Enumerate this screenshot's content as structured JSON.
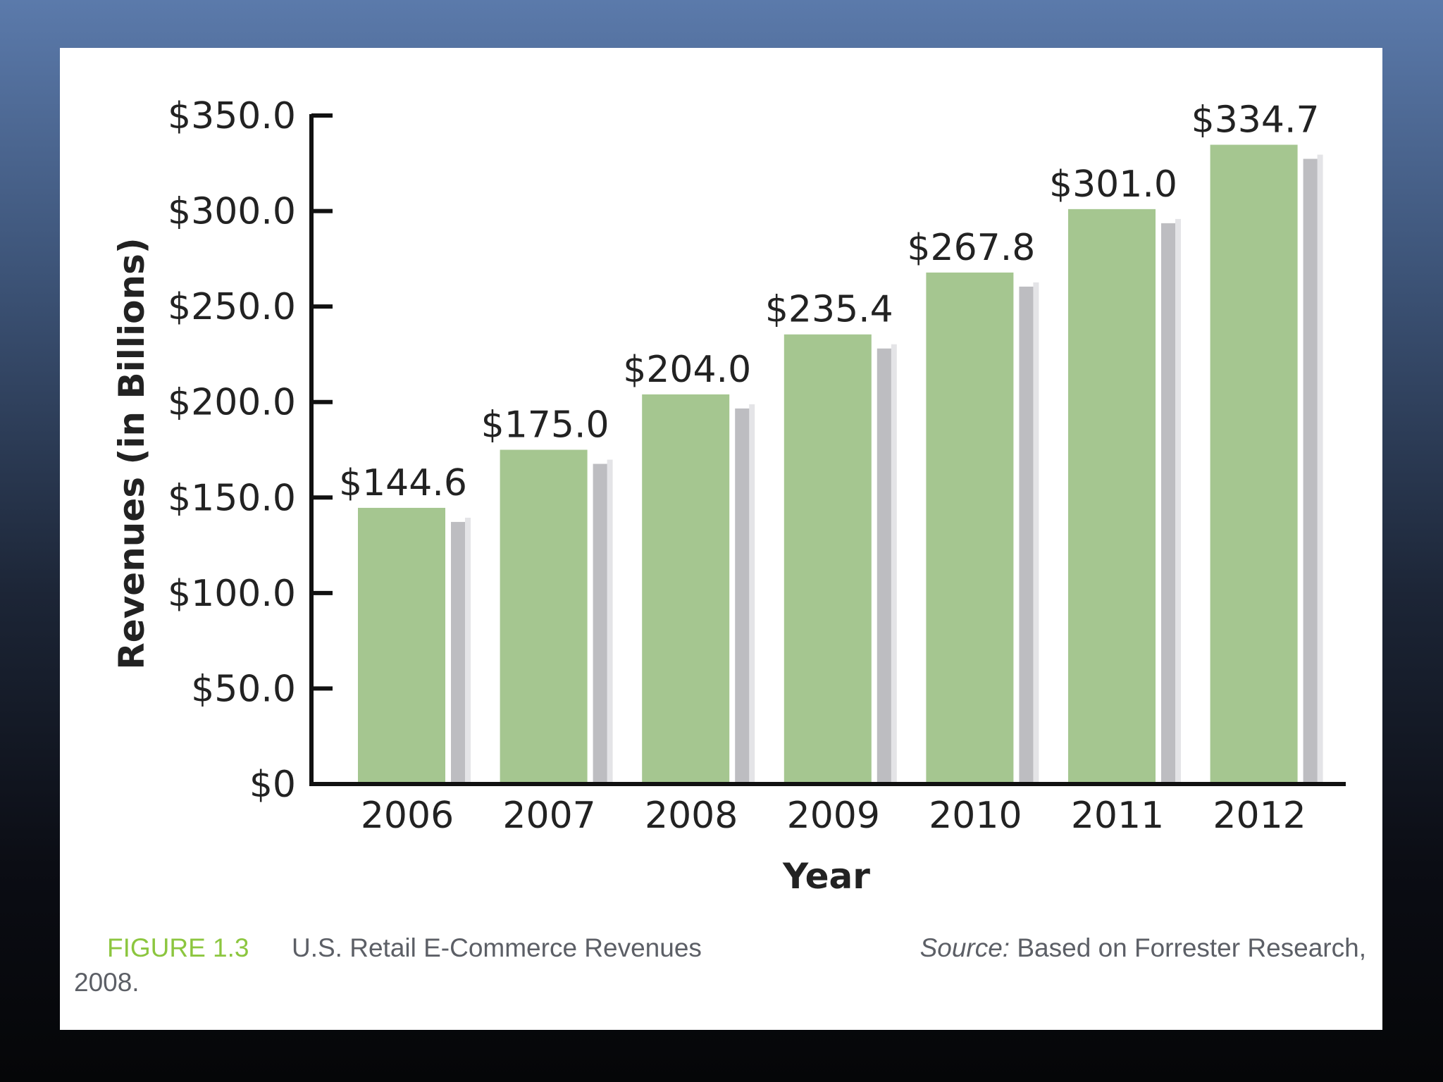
{
  "caption": {
    "figure_label": "FIGURE 1.3",
    "title": "U.S. Retail E-Commerce Revenues",
    "source_prefix": "Source:",
    "source_text": " Based on Forrester Research,",
    "source_year": "2008."
  },
  "colors": {
    "bar": "#a5c690",
    "shadow": "#bdbdc1",
    "axis": "#111111",
    "text": "#222222"
  },
  "chart_data": {
    "type": "bar",
    "xlabel": "Year",
    "ylabel": "Revenues (in Billions)",
    "ylim": [
      0,
      350
    ],
    "y_ticks": [
      0,
      50,
      100,
      150,
      200,
      250,
      300,
      350
    ],
    "y_tick_labels": [
      "$0",
      "$50.0",
      "$100.0",
      "$150.0",
      "$200.0",
      "$250.0",
      "$300.0",
      "$350.0"
    ],
    "categories": [
      "2006",
      "2007",
      "2008",
      "2009",
      "2010",
      "2011",
      "2012"
    ],
    "values": [
      144.6,
      175.0,
      204.0,
      235.4,
      267.8,
      301.0,
      334.7
    ],
    "data_labels": [
      "$144.6",
      "$175.0",
      "$204.0",
      "$235.4",
      "$267.8",
      "$301.0",
      "$334.7"
    ],
    "grid": false,
    "legend": "none"
  }
}
